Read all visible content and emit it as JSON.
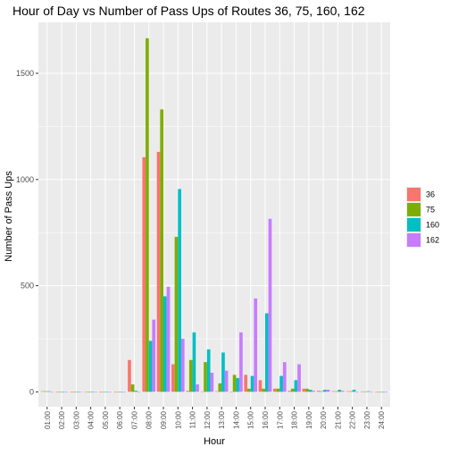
{
  "colors": {
    "panel_bg": "#EBEBEB",
    "grid_major": "#FFFFFF",
    "axis_text": "#4D4D4D",
    "title_text": "#000000"
  },
  "chart_data": {
    "type": "bar",
    "subtype": "grouped",
    "title": "Hour of Day vs Number of Pass Ups of Routes 36, 75, 160, 162",
    "xlabel": "Hour",
    "ylabel": "Number of Pass Ups",
    "ylim": [
      -70,
      1740
    ],
    "yticks": [
      0,
      500,
      1000,
      1500
    ],
    "grid": true,
    "legend_position": "right",
    "categories": [
      "01:00",
      "02:00",
      "03:00",
      "04:00",
      "05:00",
      "06:00",
      "07:00",
      "08:00",
      "09:00",
      "10:00",
      "11:00",
      "12:00",
      "13:00",
      "14:00",
      "15:00",
      "16:00",
      "17:00",
      "18:00",
      "19:00",
      "20:00",
      "21:00",
      "22:00",
      "23:00",
      "24:00"
    ],
    "series": [
      {
        "name": "36",
        "color": "#F8766D",
        "values": [
          3,
          0,
          0,
          0,
          0,
          0,
          150,
          1105,
          1130,
          130,
          5,
          2,
          3,
          0,
          80,
          55,
          15,
          5,
          15,
          5,
          3,
          3,
          2,
          0
        ]
      },
      {
        "name": "75",
        "color": "#7CAE00",
        "values": [
          3,
          0,
          0,
          0,
          0,
          0,
          35,
          1665,
          1330,
          730,
          150,
          140,
          40,
          80,
          15,
          15,
          15,
          15,
          15,
          3,
          3,
          3,
          2,
          0
        ]
      },
      {
        "name": "160",
        "color": "#00BFC4",
        "values": [
          3,
          0,
          0,
          0,
          0,
          0,
          5,
          240,
          450,
          955,
          280,
          200,
          185,
          65,
          75,
          370,
          75,
          55,
          10,
          10,
          10,
          10,
          3,
          0
        ]
      },
      {
        "name": "162",
        "color": "#C77CFF",
        "values": [
          0,
          0,
          0,
          0,
          0,
          0,
          0,
          340,
          495,
          250,
          35,
          90,
          100,
          280,
          440,
          815,
          140,
          130,
          5,
          10,
          5,
          0,
          0,
          0
        ]
      }
    ]
  }
}
